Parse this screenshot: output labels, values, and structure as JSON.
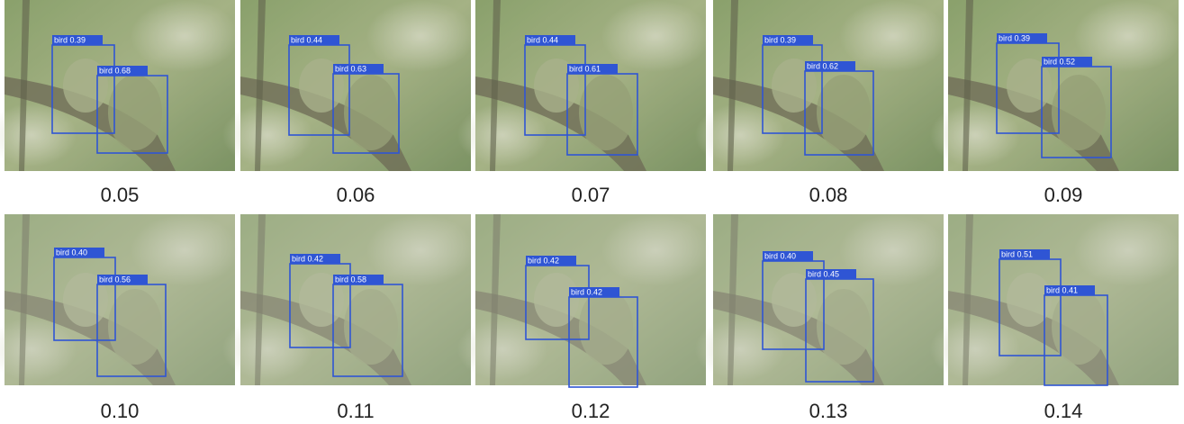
{
  "panels": [
    {
      "caption": "0.05",
      "boxes": [
        {
          "label": "bird 0.39"
        },
        {
          "label": "bird 0.68"
        }
      ]
    },
    {
      "caption": "0.06",
      "boxes": [
        {
          "label": "bird 0.44"
        },
        {
          "label": "bird 0.63"
        }
      ]
    },
    {
      "caption": "0.07",
      "boxes": [
        {
          "label": "bird 0.44"
        },
        {
          "label": "bird 0.61"
        }
      ]
    },
    {
      "caption": "0.08",
      "boxes": [
        {
          "label": "bird 0.39"
        },
        {
          "label": "bird 0.62"
        }
      ]
    },
    {
      "caption": "0.09",
      "boxes": [
        {
          "label": "bird 0.39"
        },
        {
          "label": "bird 0.52"
        }
      ]
    },
    {
      "caption": "0.10",
      "boxes": [
        {
          "label": "bird 0.40"
        },
        {
          "label": "bird 0.56"
        }
      ]
    },
    {
      "caption": "0.11",
      "boxes": [
        {
          "label": "bird 0.42"
        },
        {
          "label": "bird 0.58"
        }
      ]
    },
    {
      "caption": "0.12",
      "boxes": [
        {
          "label": "bird 0.42"
        },
        {
          "label": "bird 0.42"
        }
      ]
    },
    {
      "caption": "0.13",
      "boxes": [
        {
          "label": "bird 0.40"
        },
        {
          "label": "bird 0.45"
        }
      ]
    },
    {
      "caption": "0.14",
      "boxes": [
        {
          "label": "bird 0.51"
        },
        {
          "label": "bird 0.41"
        }
      ]
    }
  ]
}
